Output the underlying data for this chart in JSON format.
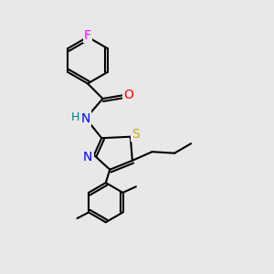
{
  "background_color": "#e8e8e8",
  "bond_color": "#000000",
  "bond_width": 1.5,
  "atom_colors": {
    "F": "#ff00ff",
    "O": "#ff0000",
    "N": "#0000ff",
    "S": "#ccaa00",
    "C": "#000000",
    "H": "#008080"
  },
  "font_size": 10,
  "fig_size": [
    3.0,
    3.0
  ],
  "dpi": 100
}
